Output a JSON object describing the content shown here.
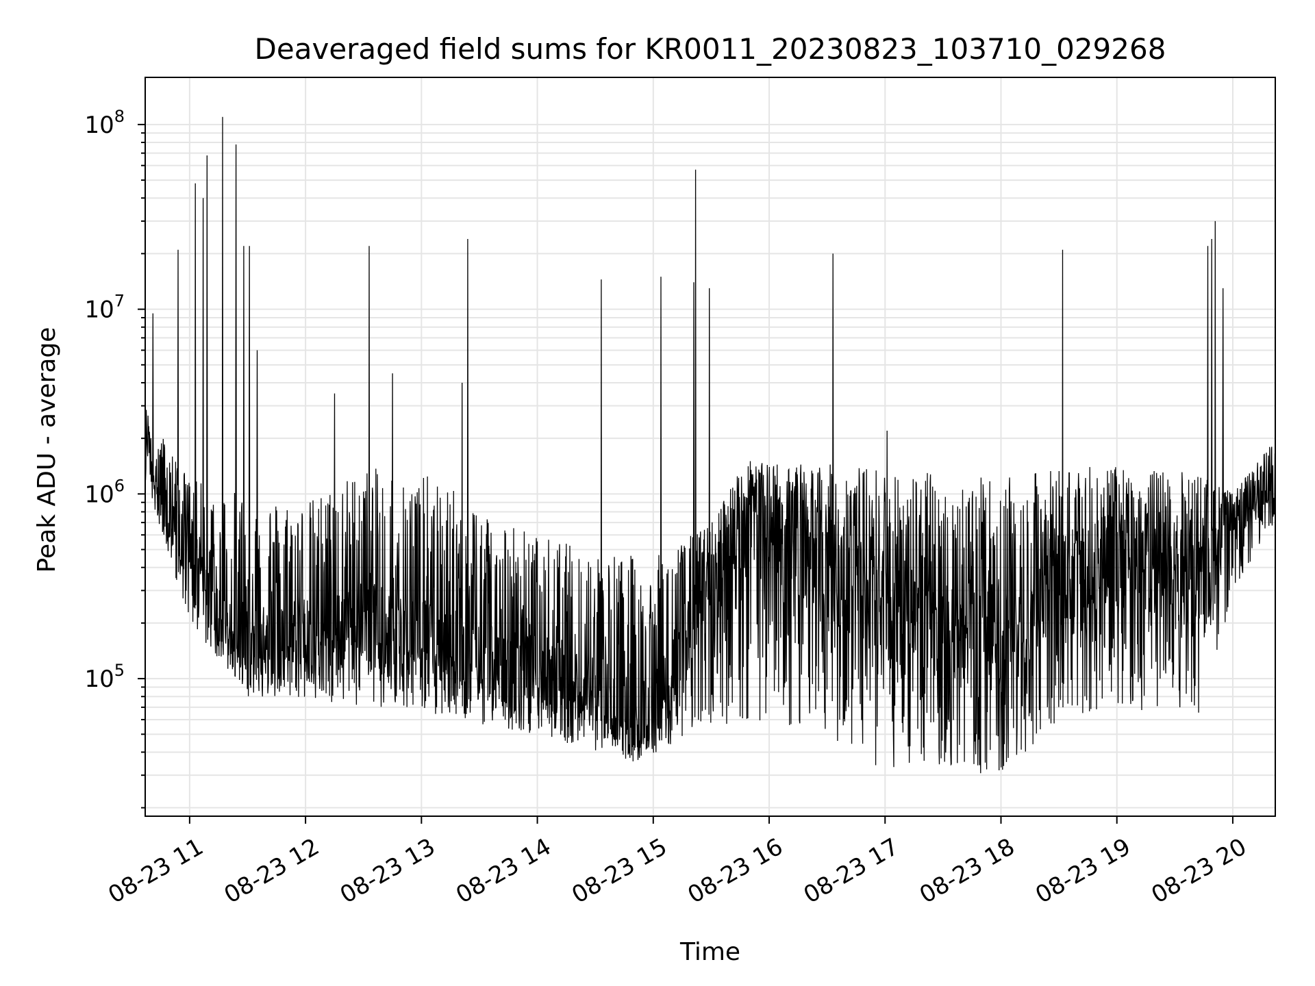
{
  "chart_data": {
    "type": "line",
    "title": "Deaveraged field sums for KR0011_20230823_103710_029268",
    "xlabel": "Time",
    "ylabel": "Peak ADU - average",
    "xscale": "time",
    "yscale": "log",
    "xlim": [
      "2023-08-23 10:37",
      "2023-08-23 20:22"
    ],
    "ylim": [
      18000,
      180000000
    ],
    "grid": "on (major and minor)",
    "line_color": "#000000",
    "x_ticks": [
      {
        "value": "2023-08-23 11:00",
        "label": "08-23 11"
      },
      {
        "value": "2023-08-23 12:00",
        "label": "08-23 12"
      },
      {
        "value": "2023-08-23 13:00",
        "label": "08-23 13"
      },
      {
        "value": "2023-08-23 14:00",
        "label": "08-23 14"
      },
      {
        "value": "2023-08-23 15:00",
        "label": "08-23 15"
      },
      {
        "value": "2023-08-23 16:00",
        "label": "08-23 16"
      },
      {
        "value": "2023-08-23 17:00",
        "label": "08-23 17"
      },
      {
        "value": "2023-08-23 18:00",
        "label": "08-23 18"
      },
      {
        "value": "2023-08-23 19:00",
        "label": "08-23 19"
      },
      {
        "value": "2023-08-23 20:00",
        "label": "08-23 20"
      }
    ],
    "y_ticks": [
      {
        "value": 100000,
        "base": "10",
        "exp": "5"
      },
      {
        "value": 1000000,
        "base": "10",
        "exp": "6"
      },
      {
        "value": 10000000,
        "base": "10",
        "exp": "7"
      },
      {
        "value": 100000000,
        "base": "10",
        "exp": "8"
      }
    ],
    "series": [
      {
        "baseline": [
          [
            "2023-08-23 10:37",
            2200000
          ],
          [
            "2023-08-23 10:45",
            900000
          ],
          [
            "2023-08-23 11:00",
            500000
          ],
          [
            "2023-08-23 11:15",
            220000
          ],
          [
            "2023-08-23 11:30",
            150000
          ],
          [
            "2023-08-23 12:00",
            170000
          ],
          [
            "2023-08-23 12:30",
            200000
          ],
          [
            "2023-08-23 13:00",
            150000
          ],
          [
            "2023-08-23 13:30",
            120000
          ],
          [
            "2023-08-23 14:00",
            110000
          ],
          [
            "2023-08-23 14:30",
            90000
          ],
          [
            "2023-08-23 14:50",
            60000
          ],
          [
            "2023-08-23 15:05",
            80000
          ],
          [
            "2023-08-23 15:30",
            300000
          ],
          [
            "2023-08-23 15:50",
            800000
          ],
          [
            "2023-08-23 16:00",
            700000
          ],
          [
            "2023-08-23 16:30",
            400000
          ],
          [
            "2023-08-23 17:00",
            250000
          ],
          [
            "2023-08-23 17:30",
            200000
          ],
          [
            "2023-08-23 18:00",
            160000
          ],
          [
            "2023-08-23 18:30",
            350000
          ],
          [
            "2023-08-23 19:00",
            450000
          ],
          [
            "2023-08-23 19:30",
            350000
          ],
          [
            "2023-08-23 19:45",
            300000
          ],
          [
            "2023-08-23 20:00",
            800000
          ],
          [
            "2023-08-23 20:22",
            1200000
          ]
        ],
        "upper_envelope": [
          [
            "2023-08-23 10:37",
            3000000
          ],
          [
            "2023-08-23 11:00",
            1200000
          ],
          [
            "2023-08-23 11:30",
            1000000
          ],
          [
            "2023-08-23 12:00",
            900000
          ],
          [
            "2023-08-23 12:30",
            1400000
          ],
          [
            "2023-08-23 13:00",
            1300000
          ],
          [
            "2023-08-23 13:30",
            900000
          ],
          [
            "2023-08-23 14:00",
            600000
          ],
          [
            "2023-08-23 14:30",
            500000
          ],
          [
            "2023-08-23 15:00",
            450000
          ],
          [
            "2023-08-23 15:30",
            700000
          ],
          [
            "2023-08-23 15:45",
            1400000
          ],
          [
            "2023-08-23 16:00",
            1500000
          ],
          [
            "2023-08-23 17:00",
            1400000
          ],
          [
            "2023-08-23 18:00",
            1200000
          ],
          [
            "2023-08-23 18:30",
            1400000
          ],
          [
            "2023-08-23 19:00",
            1400000
          ],
          [
            "2023-08-23 19:45",
            1300000
          ],
          [
            "2023-08-23 20:00",
            1000000
          ],
          [
            "2023-08-23 20:22",
            2000000
          ]
        ],
        "lower_envelope": [
          [
            "2023-08-23 10:37",
            1200000
          ],
          [
            "2023-08-23 11:00",
            200000
          ],
          [
            "2023-08-23 11:30",
            80000
          ],
          [
            "2023-08-23 12:00",
            75000
          ],
          [
            "2023-08-23 13:00",
            65000
          ],
          [
            "2023-08-23 14:00",
            50000
          ],
          [
            "2023-08-23 14:50",
            35000
          ],
          [
            "2023-08-23 15:30",
            55000
          ],
          [
            "2023-08-23 16:00",
            60000
          ],
          [
            "2023-08-23 16:30",
            45000
          ],
          [
            "2023-08-23 17:00",
            32000
          ],
          [
            "2023-08-23 17:30",
            32000
          ],
          [
            "2023-08-23 18:00",
            30000
          ],
          [
            "2023-08-23 18:30",
            60000
          ],
          [
            "2023-08-23 19:00",
            70000
          ],
          [
            "2023-08-23 19:45",
            60000
          ],
          [
            "2023-08-23 20:00",
            300000
          ],
          [
            "2023-08-23 20:22",
            700000
          ]
        ],
        "peaks": [
          [
            "2023-08-23 10:41",
            9500000
          ],
          [
            "2023-08-23 10:54",
            21000000
          ],
          [
            "2023-08-23 11:03",
            48000000
          ],
          [
            "2023-08-23 11:07",
            40000000
          ],
          [
            "2023-08-23 11:09",
            68000000
          ],
          [
            "2023-08-23 11:17",
            110000000
          ],
          [
            "2023-08-23 11:24",
            78000000
          ],
          [
            "2023-08-23 11:28",
            22000000
          ],
          [
            "2023-08-23 11:31",
            22000000
          ],
          [
            "2023-08-23 11:35",
            6000000
          ],
          [
            "2023-08-23 12:15",
            3500000
          ],
          [
            "2023-08-23 12:33",
            22000000
          ],
          [
            "2023-08-23 12:45",
            4500000
          ],
          [
            "2023-08-23 13:21",
            4000000
          ],
          [
            "2023-08-23 13:24",
            24000000
          ],
          [
            "2023-08-23 14:33",
            14500000
          ],
          [
            "2023-08-23 15:04",
            15000000
          ],
          [
            "2023-08-23 15:21",
            14000000
          ],
          [
            "2023-08-23 15:22",
            57000000
          ],
          [
            "2023-08-23 15:29",
            13000000
          ],
          [
            "2023-08-23 16:33",
            20000000
          ],
          [
            "2023-08-23 17:01",
            2200000
          ],
          [
            "2023-08-23 18:32",
            21000000
          ],
          [
            "2023-08-23 19:47",
            22000000
          ],
          [
            "2023-08-23 19:49",
            24000000
          ],
          [
            "2023-08-23 19:51",
            30000000
          ],
          [
            "2023-08-23 19:55",
            13000000
          ]
        ]
      }
    ]
  }
}
